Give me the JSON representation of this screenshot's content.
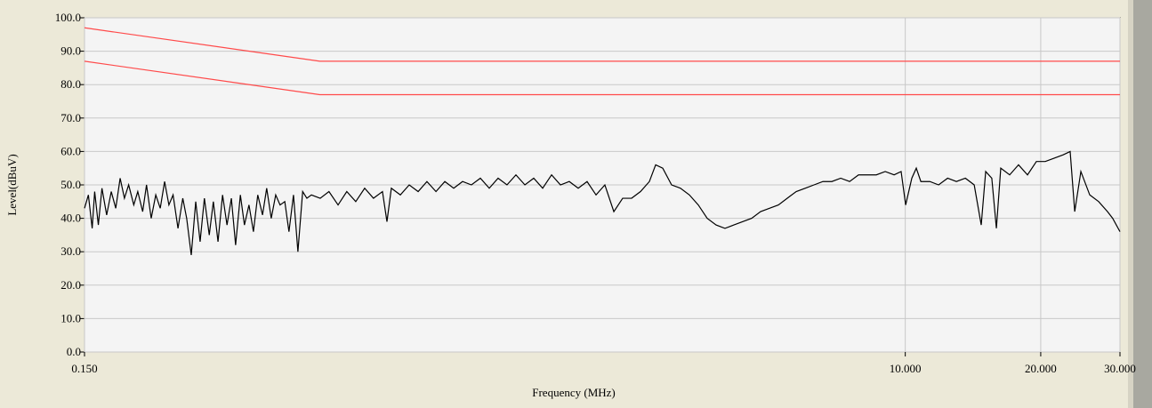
{
  "chart_data": {
    "type": "line",
    "xlabel": "Frequency (MHz)",
    "ylabel": "Level(dBuV)",
    "xscale": "log",
    "xlim": [
      0.15,
      30
    ],
    "ylim": [
      0,
      100
    ],
    "xticks": [
      {
        "value": 0.15,
        "label": "0.150"
      },
      {
        "value": 10,
        "label": "10.000"
      },
      {
        "value": 20,
        "label": "20.000"
      },
      {
        "value": 30,
        "label": "30.000"
      }
    ],
    "yticks": [
      {
        "value": 0,
        "label": "0.0"
      },
      {
        "value": 10,
        "label": "10.0"
      },
      {
        "value": 20,
        "label": "20.0"
      },
      {
        "value": 30,
        "label": "30.0"
      },
      {
        "value": 40,
        "label": "40.0"
      },
      {
        "value": 50,
        "label": "50.0"
      },
      {
        "value": 60,
        "label": "60.0"
      },
      {
        "value": 70,
        "label": "70.0"
      },
      {
        "value": 80,
        "label": "80.0"
      },
      {
        "value": 90,
        "label": "90.0"
      },
      {
        "value": 100,
        "label": "100.0"
      }
    ],
    "grid": true,
    "series": [
      {
        "color": "#ff4a4a",
        "x": [
          0.15,
          0.5,
          30
        ],
        "values": [
          97,
          87,
          87
        ]
      },
      {
        "color": "#ff4a4a",
        "x": [
          0.15,
          0.5,
          30
        ],
        "values": [
          87,
          77,
          77
        ]
      },
      {
        "color": "#000000",
        "x": [
          0.15,
          0.153,
          0.156,
          0.158,
          0.161,
          0.164,
          0.168,
          0.172,
          0.176,
          0.18,
          0.184,
          0.188,
          0.193,
          0.197,
          0.202,
          0.206,
          0.211,
          0.216,
          0.221,
          0.226,
          0.231,
          0.236,
          0.242,
          0.248,
          0.253,
          0.259,
          0.265,
          0.271,
          0.277,
          0.284,
          0.29,
          0.297,
          0.304,
          0.311,
          0.318,
          0.325,
          0.333,
          0.34,
          0.348,
          0.356,
          0.364,
          0.373,
          0.381,
          0.39,
          0.399,
          0.408,
          0.418,
          0.427,
          0.437,
          0.447,
          0.458,
          0.468,
          0.479,
          0.501,
          0.524,
          0.549,
          0.574,
          0.601,
          0.629,
          0.658,
          0.689,
          0.705,
          0.721,
          0.755,
          0.79,
          0.827,
          0.865,
          0.906,
          0.948,
          0.992,
          1.038,
          1.086,
          1.137,
          1.19,
          1.245,
          1.303,
          1.364,
          1.428,
          1.494,
          1.564,
          1.637,
          1.713,
          1.792,
          1.876,
          1.963,
          2.055,
          2.15,
          2.251,
          2.355,
          2.465,
          2.58,
          2.7,
          2.788,
          2.891,
          3.025,
          3.166,
          3.313,
          3.468,
          3.629,
          3.798,
          3.975,
          4.16,
          4.354,
          4.557,
          4.77,
          4.992,
          5.225,
          5.468,
          5.723,
          5.99,
          6.269,
          6.561,
          6.867,
          7.187,
          7.522,
          7.872,
          8.239,
          8.623,
          9.025,
          9.445,
          9.79,
          10.02,
          10.34,
          10.58,
          10.83,
          11.34,
          11.86,
          12.42,
          12.99,
          13.6,
          14.23,
          14.75,
          15.09,
          15.57,
          15.94,
          16.3,
          17.06,
          17.85,
          18.69,
          19.56,
          20.47,
          21.43,
          22.43,
          23.25,
          23.8,
          24.56,
          25.7,
          26.9,
          28.15,
          28.9,
          30
        ],
        "values": [
          43,
          47,
          37,
          48,
          38,
          49,
          41,
          48,
          43,
          52,
          46,
          50,
          44,
          48,
          42,
          50,
          40,
          47,
          43,
          51,
          44,
          47,
          37,
          46,
          40,
          29,
          45,
          33,
          46,
          35,
          45,
          33,
          47,
          38,
          46,
          32,
          47,
          38,
          44,
          36,
          47,
          41,
          49,
          40,
          47,
          44,
          45,
          36,
          47,
          30,
          48,
          46,
          47,
          46,
          48,
          44,
          48,
          45,
          49,
          46,
          48,
          39,
          49,
          47,
          50,
          48,
          51,
          48,
          51,
          49,
          51,
          50,
          52,
          49,
          52,
          50,
          53,
          50,
          52,
          49,
          53,
          50,
          51,
          49,
          51,
          47,
          50,
          42,
          46,
          46,
          48,
          51,
          56,
          55,
          50,
          49,
          47,
          44,
          40,
          38,
          37,
          38,
          39,
          40,
          42,
          43,
          44,
          46,
          48,
          49,
          50,
          51,
          51,
          52,
          51,
          53,
          53,
          53,
          54,
          53,
          54,
          44,
          52,
          55,
          51,
          51,
          50,
          52,
          51,
          52,
          50,
          38,
          54,
          52,
          37,
          55,
          53,
          56,
          53,
          57,
          57,
          58,
          59,
          60,
          42,
          54,
          47,
          45,
          42,
          40,
          36
        ]
      }
    ]
  }
}
